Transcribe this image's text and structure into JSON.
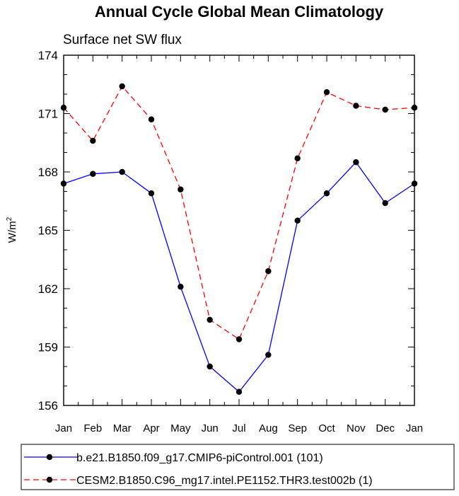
{
  "chart_data": {
    "type": "line",
    "title": "Annual Cycle Global Mean Climatology",
    "subtitle": "Surface net SW flux",
    "ylabel": "W/m",
    "ylabel_superscript": "2",
    "categories": [
      "Jan",
      "Feb",
      "Mar",
      "Apr",
      "May",
      "Jun",
      "Jul",
      "Aug",
      "Sep",
      "Oct",
      "Nov",
      "Dec",
      "Jan"
    ],
    "ylim": [
      156,
      174
    ],
    "yticks": [
      "156",
      "159",
      "162",
      "165",
      "168",
      "171",
      "174"
    ],
    "grid": false,
    "legend_position": "bottom",
    "series": [
      {
        "name": "b.e21.B1850.f09_g17.CMIP6-piControl.001 (101)",
        "color": "#0000ff",
        "dash": "solid",
        "values": [
          167.4,
          167.9,
          168.0,
          166.9,
          162.1,
          158.0,
          156.7,
          158.6,
          165.5,
          166.9,
          168.5,
          166.4,
          167.4
        ]
      },
      {
        "name": "CESM2.B1850.C96_mg17.intel.PE1152.THR3.test002b (1)",
        "color": "#ff0000",
        "dash": "dashed",
        "values": [
          171.3,
          169.6,
          172.4,
          170.7,
          167.1,
          160.4,
          159.4,
          162.9,
          168.7,
          172.1,
          171.4,
          171.2,
          171.3
        ]
      }
    ]
  }
}
